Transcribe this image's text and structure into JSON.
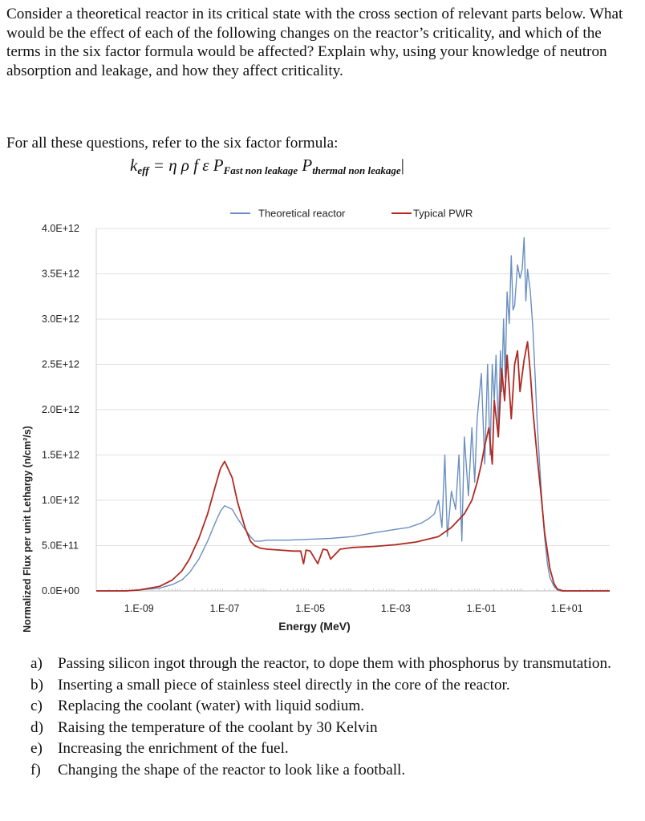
{
  "intro": "Consider a theoretical reactor in its critical state with the cross section of relevant parts below. What would be the effect of each of the following changes on the reactor’s criticality, and which of the terms in the six factor formula would be affected? Explain why, using your knowledge of neutron absorption and leakage, and how they affect criticality.",
  "formula_intro": "For all these questions, refer to the six factor formula:",
  "formula": {
    "lhs": "k",
    "lhs_sub": "eff",
    "rhs": " = η ρ f ε P",
    "p1_sub": "Fast non leakage",
    "p2": " P",
    "p2_sub": "thermal non leakage"
  },
  "questions": [
    {
      "mark": "a)",
      "text": "Passing silicon ingot through the reactor, to dope them with phosphorus by transmutation."
    },
    {
      "mark": "b)",
      "text": "Inserting a small piece of stainless steel directly in the core of the reactor."
    },
    {
      "mark": "c)",
      "text": "Replacing the coolant (water) with liquid sodium."
    },
    {
      "mark": "d)",
      "text": "Raising the temperature of the coolant by 30 Kelvin"
    },
    {
      "mark": "e)",
      "text": "Increasing the enrichment of the fuel."
    },
    {
      "mark": "f)",
      "text": "Changing the shape of the reactor to look like a football."
    }
  ],
  "chart_data": {
    "type": "line",
    "xlabel": "Energy (MeV)",
    "ylabel": "Normalized Flux per unit Lethargy (n/cm²/s)",
    "xscale": "log",
    "xlim": [
      1e-10,
      100
    ],
    "ylim": [
      0,
      4000000000000.0
    ],
    "x_ticks": [
      1e-09,
      1e-07,
      1e-05,
      0.001,
      0.1,
      10
    ],
    "x_tick_labels": [
      "1.E-09",
      "1.E-07",
      "1.E-05",
      "1.E-03",
      "1.E-01",
      "1.E+01"
    ],
    "y_ticks": [
      0,
      500000000000.0,
      1000000000000.0,
      1500000000000.0,
      2000000000000.0,
      2500000000000.0,
      3000000000000.0,
      3500000000000.0,
      4000000000000.0
    ],
    "y_tick_labels": [
      "0.0E+00",
      "5.0E+11",
      "1.0E+12",
      "1.5E+12",
      "2.0E+12",
      "2.5E+12",
      "3.0E+12",
      "3.5E+12",
      "4.0E+12"
    ],
    "grid": true,
    "legend": "top",
    "series": [
      {
        "name": "Theoretical reactor",
        "color": "#6a8fc0",
        "x": [
          1e-10,
          5e-10,
          1e-09,
          3e-09,
          6e-09,
          1e-08,
          1.5e-08,
          2.5e-08,
          4e-08,
          6e-08,
          8e-08,
          1e-07,
          1.5e-07,
          2e-07,
          3e-07,
          4e-07,
          5e-07,
          7e-07,
          1e-06,
          3e-06,
          1e-05,
          3e-05,
          0.0001,
          0.0003,
          0.001,
          0.002,
          0.004,
          0.006,
          0.008,
          0.01,
          0.012,
          0.014,
          0.016,
          0.02,
          0.025,
          0.03,
          0.035,
          0.04,
          0.05,
          0.06,
          0.07,
          0.08,
          0.1,
          0.12,
          0.14,
          0.16,
          0.18,
          0.2,
          0.22,
          0.25,
          0.28,
          0.3,
          0.33,
          0.36,
          0.4,
          0.45,
          0.5,
          0.55,
          0.6,
          0.7,
          0.8,
          0.9,
          1.0,
          1.1,
          1.2,
          1.4,
          1.6,
          1.8,
          2.0,
          2.3,
          2.6,
          3.0,
          3.5,
          4,
          5,
          6,
          7,
          8,
          10,
          20,
          100
        ],
        "y": [
          0,
          0,
          10000000000.0,
          30000000000.0,
          70000000000.0,
          120000000000.0,
          200000000000.0,
          350000000000.0,
          550000000000.0,
          750000000000.0,
          880000000000.0,
          940000000000.0,
          900000000000.0,
          800000000000.0,
          680000000000.0,
          600000000000.0,
          550000000000.0,
          550000000000.0,
          560000000000.0,
          560000000000.0,
          570000000000.0,
          580000000000.0,
          600000000000.0,
          640000000000.0,
          680000000000.0,
          700000000000.0,
          750000000000.0,
          800000000000.0,
          850000000000.0,
          1000000000000.0,
          700000000000.0,
          1500000000000.0,
          600000000000.0,
          1100000000000.0,
          900000000000.0,
          1500000000000.0,
          550000000000.0,
          1700000000000.0,
          1050000000000.0,
          1800000000000.0,
          1200000000000.0,
          1900000000000.0,
          2400000000000.0,
          1400000000000.0,
          2500000000000.0,
          1500000000000.0,
          2500000000000.0,
          2100000000000.0,
          2600000000000.0,
          1800000000000.0,
          2650000000000.0,
          2200000000000.0,
          3000000000000.0,
          2350000000000.0,
          3300000000000.0,
          2950000000000.0,
          3700000000000.0,
          3100000000000.0,
          3150000000000.0,
          3600000000000.0,
          3450000000000.0,
          3550000000000.0,
          3900000000000.0,
          3200000000000.0,
          3550000000000.0,
          3300000000000.0,
          2900000000000.0,
          2400000000000.0,
          1900000000000.0,
          1400000000000.0,
          1000000000000.0,
          600000000000.0,
          300000000000.0,
          150000000000.0,
          50000000000.0,
          10000000000.0,
          0,
          0,
          0,
          0,
          0
        ]
      },
      {
        "name": "Typical PWR",
        "color": "#b02a22",
        "x": [
          1e-10,
          5e-10,
          1e-09,
          3e-09,
          6e-09,
          1e-08,
          1.5e-08,
          2.5e-08,
          4e-08,
          6e-08,
          8e-08,
          1e-07,
          1.5e-07,
          2e-07,
          3e-07,
          4e-07,
          5e-07,
          7e-07,
          1e-06,
          2e-06,
          4e-06,
          6e-06,
          7e-06,
          8e-06,
          1e-05,
          1.5e-05,
          2e-05,
          2.5e-05,
          3e-05,
          5e-05,
          7e-05,
          0.0001,
          0.0003,
          0.001,
          0.003,
          0.01,
          0.02,
          0.04,
          0.06,
          0.08,
          0.1,
          0.12,
          0.15,
          0.18,
          0.2,
          0.25,
          0.3,
          0.35,
          0.4,
          0.5,
          0.6,
          0.7,
          0.8,
          1.0,
          1.2,
          1.4,
          1.6,
          2.0,
          2.5,
          3.0,
          4,
          5,
          6,
          8,
          10,
          100
        ],
        "y": [
          0,
          0,
          10000000000.0,
          50000000000.0,
          120000000000.0,
          220000000000.0,
          350000000000.0,
          580000000000.0,
          850000000000.0,
          1150000000000.0,
          1350000000000.0,
          1430000000000.0,
          1250000000000.0,
          980000000000.0,
          700000000000.0,
          550000000000.0,
          500000000000.0,
          470000000000.0,
          460000000000.0,
          450000000000.0,
          440000000000.0,
          440000000000.0,
          300000000000.0,
          450000000000.0,
          440000000000.0,
          300000000000.0,
          460000000000.0,
          450000000000.0,
          350000000000.0,
          460000000000.0,
          470000000000.0,
          480000000000.0,
          490000000000.0,
          510000000000.0,
          540000000000.0,
          600000000000.0,
          700000000000.0,
          850000000000.0,
          1000000000000.0,
          1200000000000.0,
          1400000000000.0,
          1600000000000.0,
          1800000000000.0,
          1400000000000.0,
          2100000000000.0,
          1700000000000.0,
          2450000000000.0,
          2100000000000.0,
          2600000000000.0,
          1900000000000.0,
          2500000000000.0,
          2650000000000.0,
          2200000000000.0,
          2550000000000.0,
          2750000000000.0,
          2400000000000.0,
          2000000000000.0,
          1500000000000.0,
          1050000000000.0,
          650000000000.0,
          250000000000.0,
          80000000000.0,
          20000000000.0,
          0,
          0,
          0
        ]
      }
    ]
  }
}
